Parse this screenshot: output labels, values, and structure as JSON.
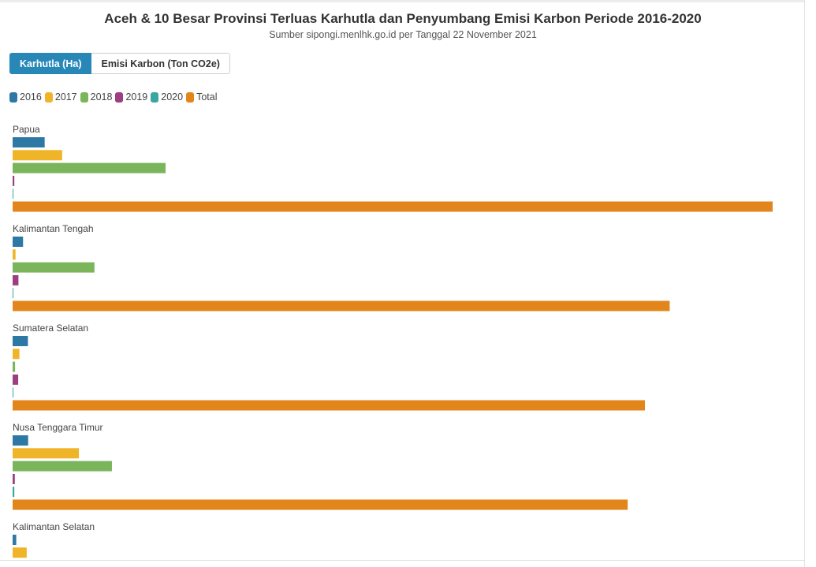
{
  "title": "Aceh & 10 Besar Provinsi Terluas Karhutla dan Penyumbang Emisi Karbon Periode 2016-2020",
  "subtitle": "Sumber sipongi.menlhk.go.id per Tanggal 22 November 2021",
  "tabs": [
    {
      "label": "Karhutla (Ha)",
      "active": true
    },
    {
      "label": "Emisi Karbon (Ton CO2e)",
      "active": false
    }
  ],
  "chart_data": {
    "type": "bar",
    "orientation": "horizontal",
    "unit": "Ha",
    "categories": [
      "Papua",
      "Kalimantan Tengah",
      "Sumatera Selatan",
      "Nusa Tenggara Timur",
      "Kalimantan Selatan"
    ],
    "series": [
      {
        "name": "2016",
        "color": "#2e78a6",
        "values": [
          13200,
          4300,
          6300,
          6400,
          1500
        ]
      },
      {
        "name": "2017",
        "color": "#f0b429",
        "values": [
          20400,
          1200,
          2800,
          27300,
          5800
        ]
      },
      {
        "name": "2018",
        "color": "#7ab55c",
        "values": [
          63000,
          33700,
          1000,
          40900,
          null
        ]
      },
      {
        "name": "2019",
        "color": "#9b3f80",
        "values": [
          700,
          2400,
          2300,
          900,
          null
        ]
      },
      {
        "name": "2020",
        "color": "#3aa6a0",
        "values": [
          200,
          100,
          0,
          700,
          null
        ]
      },
      {
        "name": "Total",
        "color": "#e2861b",
        "values": [
          313000,
          270600,
          260400,
          253300,
          null
        ]
      }
    ],
    "legend_position": "top-left",
    "grid": false
  }
}
